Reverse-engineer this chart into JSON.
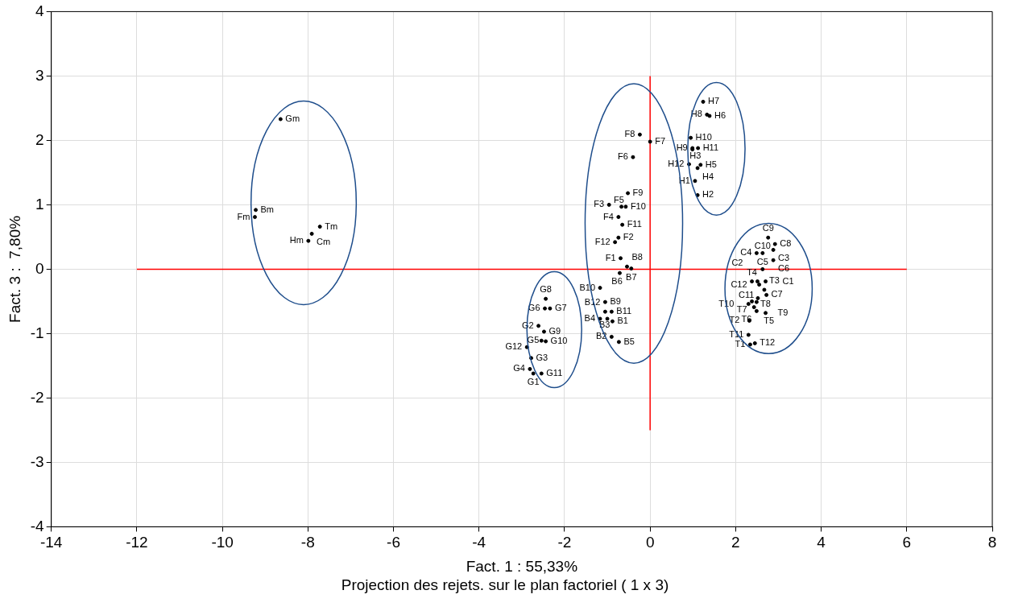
{
  "chart_data": {
    "type": "scatter",
    "xlabel": "Fact. 1 : 55,33%",
    "ylabel": "Fact. 3 :  7,80%",
    "annotations": [
      "Projection des rejets. sur le plan factoriel (  1 x   3)"
    ],
    "xlim": [
      -14,
      8
    ],
    "xticks": [
      -14,
      -12,
      -10,
      -8,
      -6,
      -4,
      -2,
      0,
      2,
      4,
      6,
      8
    ],
    "ylim": [
      -4,
      4
    ],
    "yticks": [
      -4,
      -3,
      -2,
      -1,
      0,
      1,
      2,
      3,
      4
    ],
    "grid": true,
    "legend": false,
    "series": [
      {
        "color": "#000000",
        "marker": "circle",
        "x": [
          -8.64,
          -9.22,
          -9.24,
          -7.72,
          -7.91,
          -7.99,
          -0.24,
          0.0,
          -0.4,
          -0.52,
          -0.96,
          -0.67,
          -0.57,
          -0.74,
          -0.65,
          -0.74,
          -0.82,
          -0.69,
          -0.54,
          -0.44,
          -0.71,
          -1.17,
          -1.05,
          -1.05,
          -0.9,
          -1.17,
          -1.0,
          -0.88,
          -0.9,
          -0.73,
          1.24,
          1.33,
          1.39,
          0.95,
          0.99,
          1.12,
          0.99,
          0.91,
          1.18,
          1.11,
          1.05,
          1.11,
          2.76,
          2.92,
          2.88,
          2.49,
          2.63,
          2.88,
          2.63,
          2.38,
          2.51,
          2.7,
          2.55,
          2.67,
          2.72,
          2.52,
          2.49,
          2.3,
          2.38,
          2.43,
          2.49,
          2.7,
          2.32,
          2.3,
          2.34,
          2.45,
          -2.44,
          -2.46,
          -2.34,
          -2.61,
          -2.48,
          -2.54,
          -2.44,
          -2.88,
          -2.78,
          -2.81,
          -2.73,
          -2.54
        ],
        "values": [
          2.33,
          0.92,
          0.81,
          0.66,
          0.55,
          0.44,
          2.09,
          1.98,
          1.74,
          1.18,
          1.0,
          0.97,
          0.97,
          0.81,
          0.69,
          0.49,
          0.42,
          0.17,
          0.04,
          0.01,
          -0.06,
          -0.29,
          -0.51,
          -0.66,
          -0.66,
          -0.77,
          -0.77,
          -0.81,
          -1.05,
          -1.13,
          2.6,
          2.4,
          2.38,
          2.04,
          1.88,
          1.88,
          1.86,
          1.63,
          1.62,
          1.57,
          1.37,
          1.15,
          0.49,
          0.39,
          0.3,
          0.25,
          0.25,
          0.14,
          0.0,
          -0.19,
          -0.19,
          -0.19,
          -0.24,
          -0.32,
          -0.4,
          -0.45,
          -0.51,
          -0.54,
          -0.5,
          -0.59,
          -0.65,
          -0.68,
          -0.8,
          -1.02,
          -1.17,
          -1.15,
          -0.46,
          -0.61,
          -0.61,
          -0.88,
          -0.97,
          -1.11,
          -1.12,
          -1.21,
          -1.38,
          -1.55,
          -1.62,
          -1.62
        ],
        "value_labels": [
          "Gm",
          "Bm",
          "Fm",
          "Tm",
          "Cm",
          "Hm",
          "F8",
          "F7",
          "F6",
          "F9",
          "F3",
          "F5",
          "F10",
          "F4",
          "F11",
          "F2",
          "F12",
          "F1",
          "B8",
          "B7",
          "B6",
          "B10",
          "B9",
          "B12",
          "B11",
          "B4",
          "B3",
          "B1",
          "B2",
          "B5",
          "H7",
          "H8",
          "H6",
          "H10",
          "H9",
          "H11",
          "H3",
          "H12",
          "H5",
          "H4",
          "H1",
          "H2",
          "C9",
          "C8",
          "C3",
          "C4",
          "C10",
          "C6",
          "C5",
          "T4",
          "C2",
          "C1",
          "C12",
          "T3",
          "C7",
          "T8",
          "C11",
          "T10",
          "T7",
          "T5",
          "T6",
          "T9",
          "T2",
          "T11",
          "T1",
          "T12",
          "G8",
          "G6",
          "G7",
          "G2",
          "G9",
          "G5",
          "G10",
          "G12",
          "G3",
          "G4",
          "G1",
          "G11"
        ]
      },
      {
        "type": "line",
        "color": "#ff0000",
        "x": [
          -12,
          6
        ],
        "values": [
          0,
          0
        ]
      },
      {
        "type": "line",
        "color": "#ff0000",
        "x": [
          0,
          0
        ],
        "values": [
          -2.5,
          3
        ]
      }
    ]
  }
}
